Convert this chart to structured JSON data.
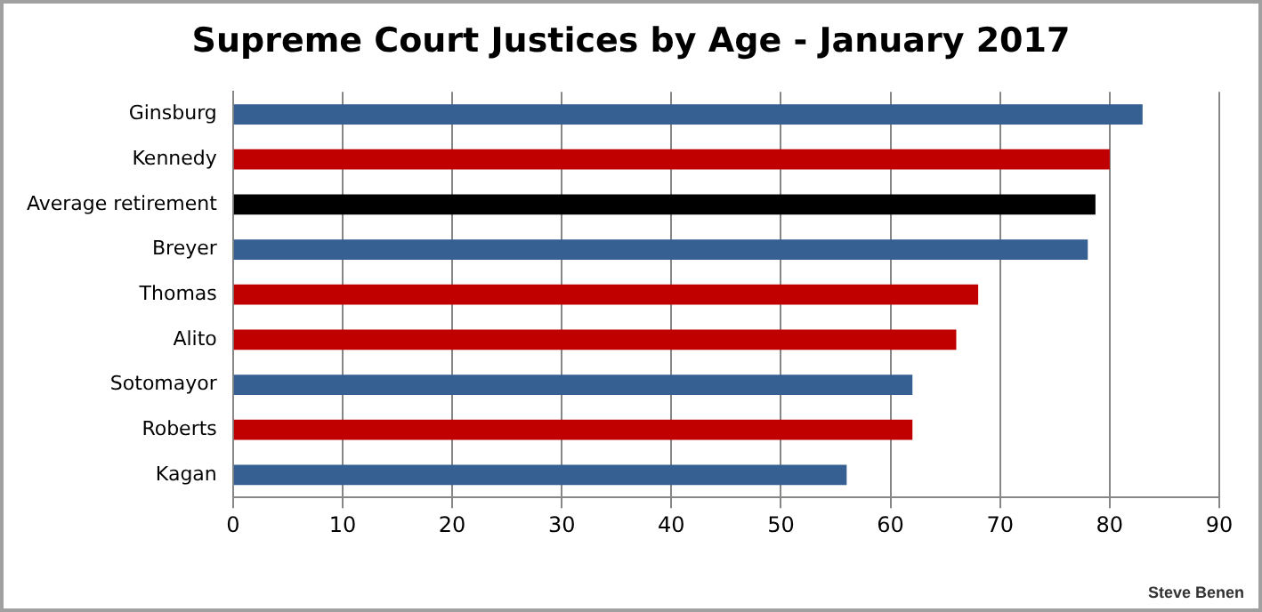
{
  "chart_data": {
    "type": "bar",
    "orientation": "horizontal",
    "title": "Supreme Court Justices by Age - January 2017",
    "categories": [
      "Ginsburg",
      "Kennedy",
      "Average retirement",
      "Breyer",
      "Thomas",
      "Alito",
      "Sotomayor",
      "Roberts",
      "Kagan"
    ],
    "values": [
      83,
      80,
      78.7,
      78,
      68,
      66,
      62,
      62,
      56
    ],
    "colors": [
      "#376092",
      "#c00000",
      "#000000",
      "#376092",
      "#c00000",
      "#c00000",
      "#376092",
      "#c00000",
      "#376092"
    ],
    "xlim": [
      0,
      90
    ],
    "xticks": [
      0,
      10,
      20,
      30,
      40,
      50,
      60,
      70,
      80,
      90
    ],
    "grid": "x",
    "legend": false,
    "annotations": [
      "Steve Benen"
    ]
  }
}
